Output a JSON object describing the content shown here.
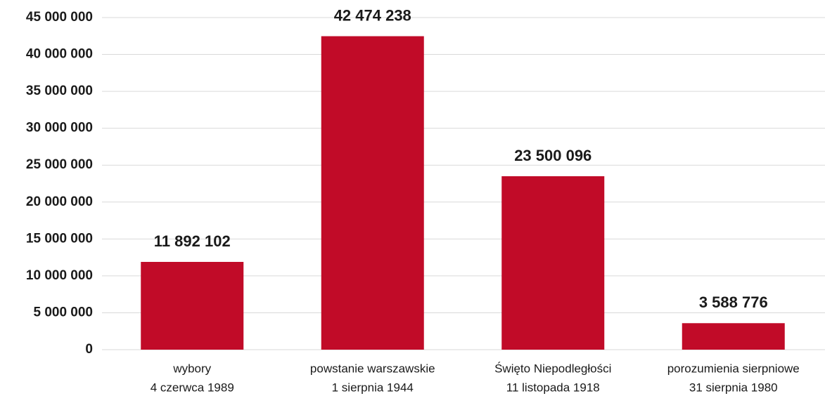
{
  "chart_data": {
    "type": "bar",
    "categories": [
      [
        "wybory",
        "4 czerwca 1989"
      ],
      [
        "powstanie warszawskie",
        "1 sierpnia 1944"
      ],
      [
        "Święto Niepodległości",
        "11 listopada 1918"
      ],
      [
        "porozumienia sierpniowe",
        "31 sierpnia 1980"
      ]
    ],
    "values": [
      11892102,
      42474238,
      23500096,
      3588776
    ],
    "value_labels": [
      "11 892 102",
      "42 474 238",
      "23 500 096",
      "3 588 776"
    ],
    "color": "#c10b28",
    "ylim": [
      0,
      45000000
    ],
    "yticks": [
      0,
      {
        "value": 5000000,
        "label": "5 000 000"
      },
      {
        "value": 10000000,
        "label": "10 000 000"
      },
      {
        "value": 15000000,
        "label": "15 000 000"
      },
      {
        "value": 20000000,
        "label": "20 000 000"
      },
      {
        "value": 25000000,
        "label": "25 000 000"
      },
      {
        "value": 30000000,
        "label": "30 000 000"
      },
      {
        "value": 35000000,
        "label": "35 000 000"
      },
      {
        "value": 40000000,
        "label": "40 000 000"
      },
      {
        "value": 45000000,
        "label": "45 000 000"
      }
    ],
    "grid": true
  }
}
